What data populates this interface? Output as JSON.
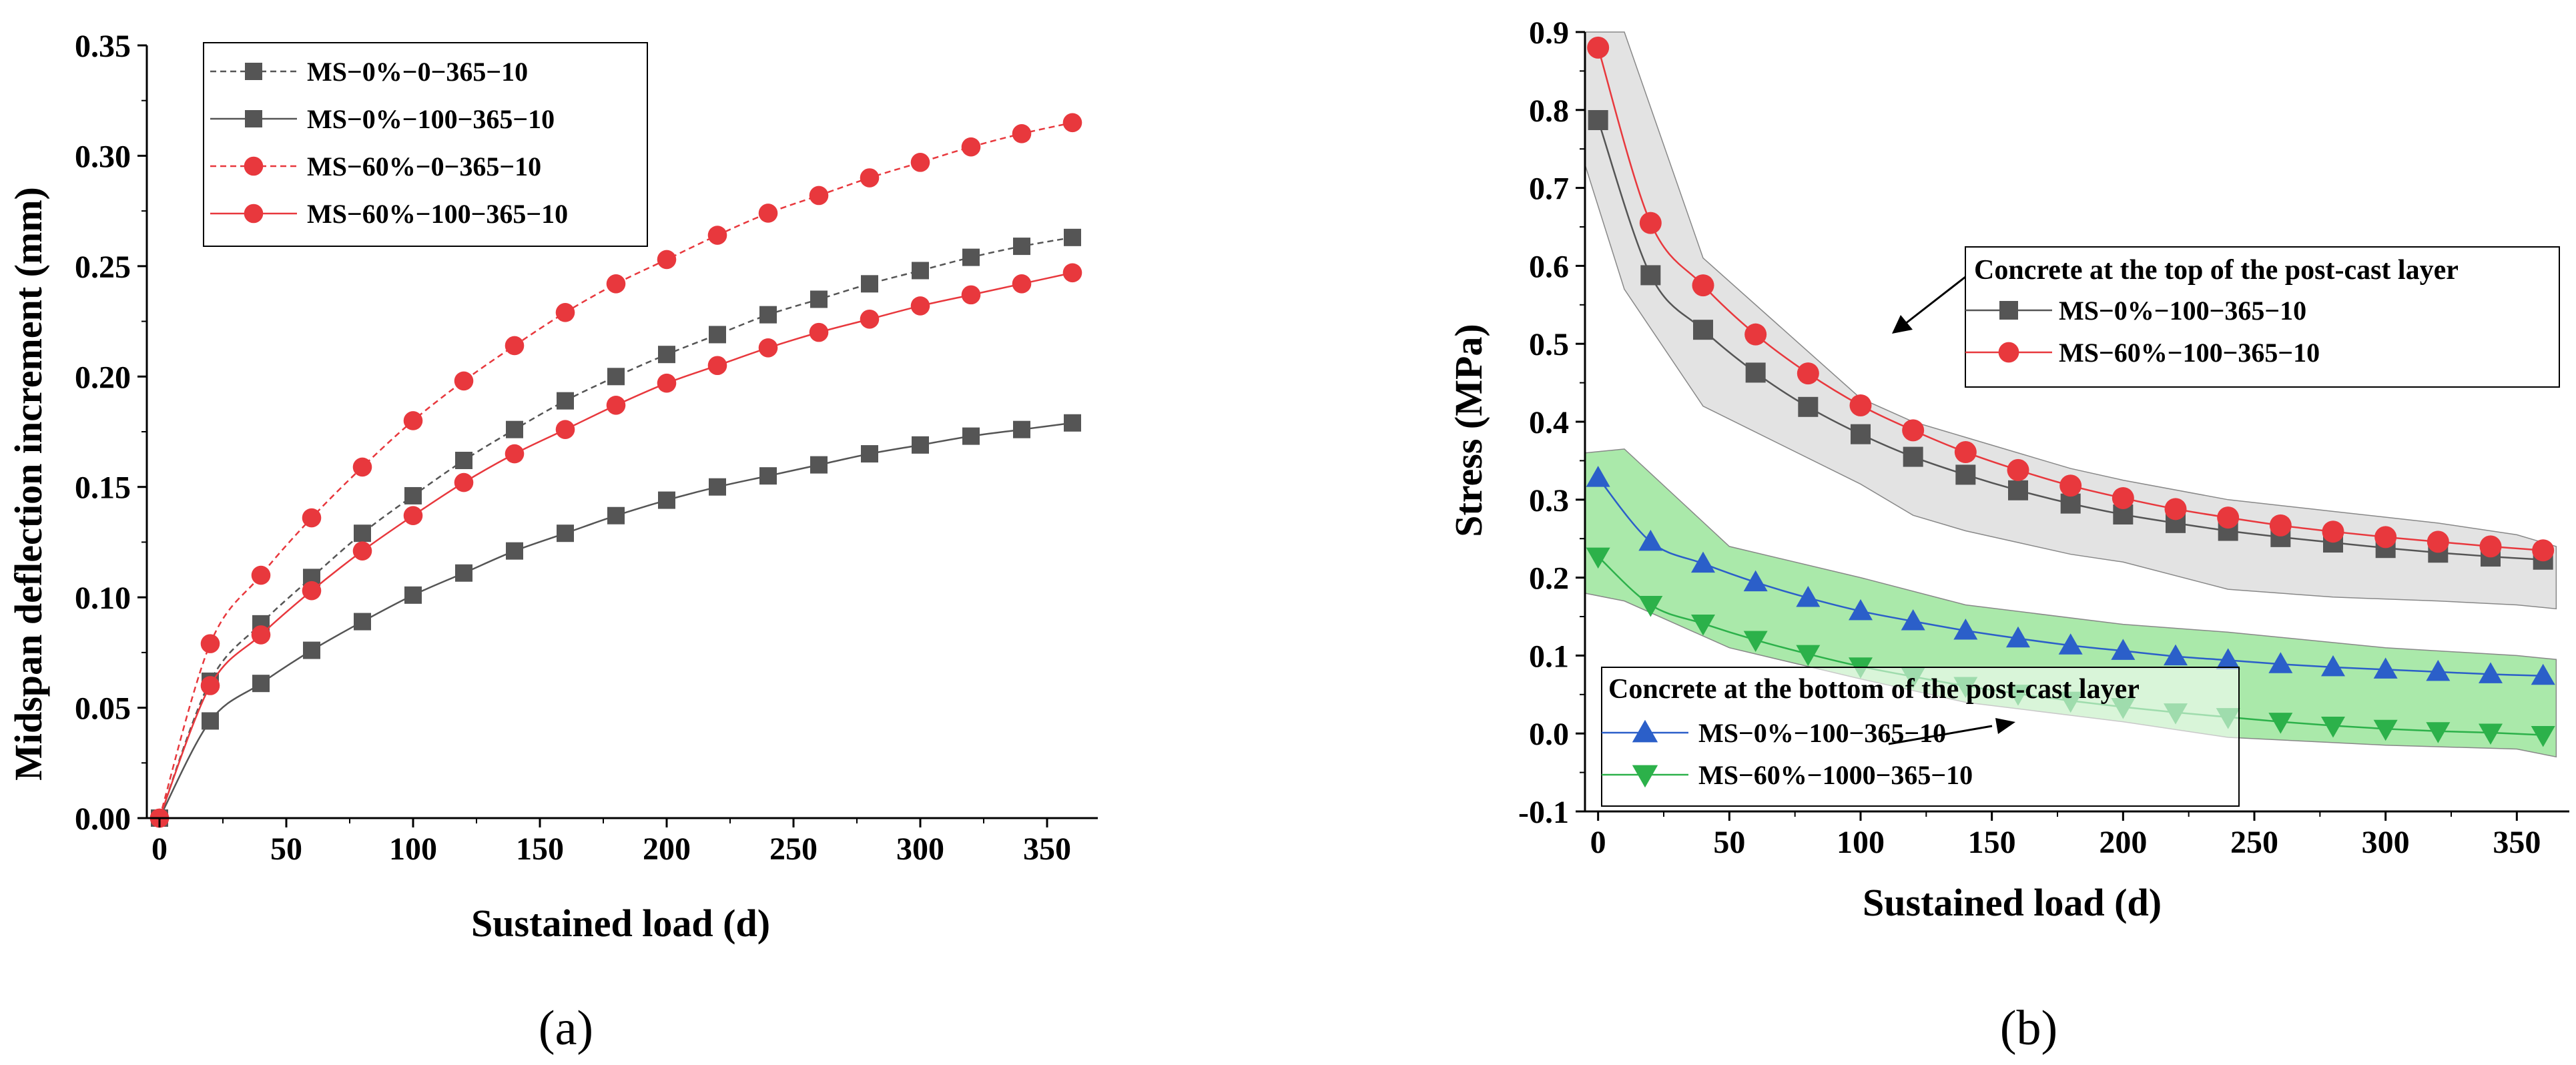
{
  "chart_data": [
    {
      "type": "line",
      "panel_label": "(a)",
      "xlabel": "Sustained load (d)",
      "ylabel": "Midspan deflection increment (mm)",
      "xlim": [
        -5,
        370
      ],
      "ylim": [
        0,
        0.35
      ],
      "xticks": [
        "0",
        "50",
        "100",
        "150",
        "200",
        "250",
        "300",
        "350"
      ],
      "xtick_values": [
        0,
        50,
        100,
        150,
        200,
        250,
        300,
        350
      ],
      "yticks": [
        "0.00",
        "0.05",
        "0.10",
        "0.15",
        "0.20",
        "0.25",
        "0.30",
        "0.35"
      ],
      "ytick_values": [
        0,
        0.05,
        0.1,
        0.15,
        0.2,
        0.25,
        0.3,
        0.35
      ],
      "legend_position": "top-left",
      "series": [
        {
          "name": "MS−0%−0−365−10",
          "color": "#555555",
          "line": "dashed",
          "marker": "square",
          "x": [
            0,
            20,
            40,
            60,
            80,
            100,
            120,
            140,
            160,
            180,
            200,
            220,
            240,
            260,
            280,
            300,
            320,
            340,
            360
          ],
          "values": [
            0,
            0.062,
            0.088,
            0.109,
            0.129,
            0.146,
            0.162,
            0.176,
            0.189,
            0.2,
            0.21,
            0.219,
            0.228,
            0.235,
            0.242,
            0.248,
            0.254,
            0.259,
            0.263
          ]
        },
        {
          "name": "MS−0%−100−365−10",
          "color": "#555555",
          "line": "solid",
          "marker": "square",
          "x": [
            0,
            20,
            40,
            60,
            80,
            100,
            120,
            140,
            160,
            180,
            200,
            220,
            240,
            260,
            280,
            300,
            320,
            340,
            360
          ],
          "values": [
            0,
            0.044,
            0.061,
            0.076,
            0.089,
            0.101,
            0.111,
            0.121,
            0.129,
            0.137,
            0.144,
            0.15,
            0.155,
            0.16,
            0.165,
            0.169,
            0.173,
            0.176,
            0.179
          ]
        },
        {
          "name": "MS−60%−0−365−10",
          "color": "#e8383d",
          "line": "dashed",
          "marker": "circle",
          "x": [
            0,
            20,
            40,
            60,
            80,
            100,
            120,
            140,
            160,
            180,
            200,
            220,
            240,
            260,
            280,
            300,
            320,
            340,
            360
          ],
          "values": [
            0,
            0.079,
            0.11,
            0.136,
            0.159,
            0.18,
            0.198,
            0.214,
            0.229,
            0.242,
            0.253,
            0.264,
            0.274,
            0.282,
            0.29,
            0.297,
            0.304,
            0.31,
            0.315
          ]
        },
        {
          "name": "MS−60%−100−365−10",
          "color": "#e8383d",
          "line": "solid",
          "marker": "circle",
          "x": [
            0,
            20,
            40,
            60,
            80,
            100,
            120,
            140,
            160,
            180,
            200,
            220,
            240,
            260,
            280,
            300,
            320,
            340,
            360
          ],
          "values": [
            0,
            0.06,
            0.083,
            0.103,
            0.121,
            0.137,
            0.152,
            0.165,
            0.176,
            0.187,
            0.197,
            0.205,
            0.213,
            0.22,
            0.226,
            0.232,
            0.237,
            0.242,
            0.247
          ]
        }
      ]
    },
    {
      "type": "line",
      "panel_label": "(b)",
      "xlabel": "Sustained load (d)",
      "ylabel": "Stress (MPa)",
      "xlim": [
        -5,
        370
      ],
      "ylim": [
        -0.1,
        0.9
      ],
      "xticks": [
        "0",
        "50",
        "100",
        "150",
        "200",
        "250",
        "300",
        "350"
      ],
      "xtick_values": [
        0,
        50,
        100,
        150,
        200,
        250,
        300,
        350
      ],
      "yticks": [
        "-0.1",
        "0.0",
        "0.1",
        "0.2",
        "0.3",
        "0.4",
        "0.5",
        "0.6",
        "0.7",
        "0.8",
        "0.9"
      ],
      "ytick_values": [
        -0.1,
        0,
        0.1,
        0.2,
        0.3,
        0.4,
        0.5,
        0.6,
        0.7,
        0.8,
        0.9
      ],
      "bands": [
        {
          "name": "top-layer-band",
          "color": "#d9d9d9",
          "x": [
            -5,
            10,
            40,
            100,
            120,
            140,
            160,
            180,
            200,
            240,
            280,
            320,
            350,
            365
          ],
          "upper": [
            0.9,
            0.9,
            0.61,
            0.43,
            0.4,
            0.38,
            0.36,
            0.34,
            0.325,
            0.3,
            0.285,
            0.27,
            0.255,
            0.24
          ],
          "lower": [
            0.73,
            0.57,
            0.42,
            0.32,
            0.28,
            0.26,
            0.245,
            0.23,
            0.22,
            0.185,
            0.175,
            0.17,
            0.165,
            0.16
          ]
        },
        {
          "name": "bottom-layer-band",
          "color": "#8de28d",
          "x": [
            -5,
            10,
            50,
            100,
            140,
            200,
            240,
            300,
            350,
            365
          ],
          "upper": [
            0.36,
            0.365,
            0.24,
            0.2,
            0.165,
            0.14,
            0.13,
            0.11,
            0.1,
            0.095
          ],
          "lower": [
            0.18,
            0.17,
            0.11,
            0.07,
            0.04,
            0.015,
            -0.005,
            -0.015,
            -0.02,
            -0.03
          ]
        }
      ],
      "annotations": [
        "Concrete at the top of the post-cast layer",
        "Concrete at the bottom of the post-cast layer"
      ],
      "legend_position": "top-right and bottom-left",
      "series": [
        {
          "name": "MS−0%−100−365−10",
          "group": "top",
          "color": "#555555",
          "marker": "square",
          "x": [
            0,
            20,
            40,
            60,
            80,
            100,
            120,
            140,
            160,
            180,
            200,
            220,
            240,
            260,
            280,
            300,
            320,
            340,
            360
          ],
          "values": [
            0.787,
            0.588,
            0.518,
            0.463,
            0.419,
            0.384,
            0.355,
            0.332,
            0.312,
            0.295,
            0.281,
            0.27,
            0.26,
            0.252,
            0.245,
            0.238,
            0.232,
            0.227,
            0.223
          ]
        },
        {
          "name": "MS−60%−100−365−10",
          "group": "top",
          "color": "#e8383d",
          "marker": "circle",
          "x": [
            0,
            20,
            40,
            60,
            80,
            100,
            120,
            140,
            160,
            180,
            200,
            220,
            240,
            260,
            280,
            300,
            320,
            340,
            360
          ],
          "values": [
            0.88,
            0.655,
            0.575,
            0.512,
            0.462,
            0.421,
            0.389,
            0.361,
            0.338,
            0.318,
            0.302,
            0.288,
            0.277,
            0.267,
            0.259,
            0.252,
            0.246,
            0.24,
            0.235
          ]
        },
        {
          "name": "MS−0%−100−365−10",
          "group": "bottom",
          "color": "#2b5fc9",
          "marker": "triangle-up",
          "x": [
            0,
            20,
            40,
            60,
            80,
            100,
            120,
            140,
            160,
            180,
            200,
            220,
            240,
            260,
            280,
            300,
            320,
            340,
            360
          ],
          "values": [
            0.328,
            0.246,
            0.218,
            0.194,
            0.174,
            0.157,
            0.144,
            0.132,
            0.122,
            0.113,
            0.106,
            0.099,
            0.094,
            0.089,
            0.085,
            0.082,
            0.079,
            0.076,
            0.074
          ]
        },
        {
          "name": "MS−60%−1000−365−10",
          "group": "bottom",
          "color": "#2cb14a",
          "marker": "triangle-down",
          "x": [
            0,
            20,
            40,
            60,
            80,
            100,
            120,
            140,
            160,
            180,
            200,
            220,
            240,
            260,
            280,
            300,
            320,
            340,
            360
          ],
          "values": [
            0.227,
            0.165,
            0.141,
            0.12,
            0.102,
            0.086,
            0.073,
            0.061,
            0.051,
            0.042,
            0.034,
            0.027,
            0.021,
            0.015,
            0.01,
            0.006,
            0.003,
            0.001,
            -0.002
          ]
        }
      ]
    }
  ]
}
